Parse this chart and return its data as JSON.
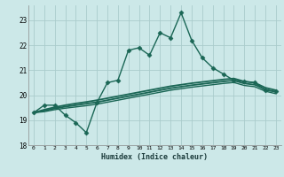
{
  "title": "",
  "xlabel": "Humidex (Indice chaleur)",
  "bg_color": "#cce8e8",
  "grid_color": "#aacccc",
  "line_color": "#1a6655",
  "xlim": [
    -0.5,
    23.5
  ],
  "ylim": [
    18,
    23.6
  ],
  "yticks": [
    18,
    19,
    20,
    21,
    22,
    23
  ],
  "xticks": [
    0,
    1,
    2,
    3,
    4,
    5,
    6,
    7,
    8,
    9,
    10,
    11,
    12,
    13,
    14,
    15,
    16,
    17,
    18,
    19,
    20,
    21,
    22,
    23
  ],
  "series": [
    {
      "x": [
        0,
        1,
        2,
        3,
        4,
        5,
        6,
        7,
        8,
        9,
        10,
        11,
        12,
        13,
        14,
        15,
        16,
        17,
        18,
        19,
        20,
        21,
        22,
        23
      ],
      "y": [
        19.3,
        19.6,
        19.6,
        19.2,
        18.9,
        18.5,
        19.7,
        20.5,
        20.6,
        21.8,
        21.9,
        21.6,
        22.5,
        22.3,
        23.3,
        22.2,
        21.5,
        21.1,
        20.85,
        20.6,
        20.55,
        20.5,
        20.2,
        20.15
      ],
      "marker": "D",
      "markersize": 2.5,
      "linewidth": 1.0,
      "has_marker": true
    },
    {
      "x": [
        0,
        1,
        2,
        3,
        4,
        5,
        6,
        7,
        8,
        9,
        10,
        11,
        12,
        13,
        14,
        15,
        16,
        17,
        18,
        19,
        20,
        21,
        22,
        23
      ],
      "y": [
        19.3,
        19.42,
        19.52,
        19.6,
        19.67,
        19.73,
        19.8,
        19.88,
        19.96,
        20.04,
        20.12,
        20.2,
        20.28,
        20.36,
        20.42,
        20.48,
        20.53,
        20.58,
        20.63,
        20.67,
        20.55,
        20.5,
        20.3,
        20.2
      ],
      "marker": null,
      "markersize": 0,
      "linewidth": 1.3,
      "has_marker": false
    },
    {
      "x": [
        0,
        1,
        2,
        3,
        4,
        5,
        6,
        7,
        8,
        9,
        10,
        11,
        12,
        13,
        14,
        15,
        16,
        17,
        18,
        19,
        20,
        21,
        22,
        23
      ],
      "y": [
        19.3,
        19.38,
        19.47,
        19.54,
        19.6,
        19.66,
        19.72,
        19.8,
        19.88,
        19.96,
        20.04,
        20.12,
        20.2,
        20.28,
        20.34,
        20.4,
        20.45,
        20.5,
        20.55,
        20.59,
        20.47,
        20.42,
        20.23,
        20.13
      ],
      "marker": null,
      "markersize": 0,
      "linewidth": 1.3,
      "has_marker": false
    },
    {
      "x": [
        0,
        1,
        2,
        3,
        4,
        5,
        6,
        7,
        8,
        9,
        10,
        11,
        12,
        13,
        14,
        15,
        16,
        17,
        18,
        19,
        20,
        21,
        22,
        23
      ],
      "y": [
        19.3,
        19.34,
        19.42,
        19.48,
        19.53,
        19.58,
        19.64,
        19.72,
        19.8,
        19.88,
        19.96,
        20.04,
        20.12,
        20.2,
        20.26,
        20.32,
        20.37,
        20.42,
        20.47,
        20.51,
        20.39,
        20.34,
        20.16,
        20.06
      ],
      "marker": null,
      "markersize": 0,
      "linewidth": 1.0,
      "has_marker": false
    }
  ]
}
